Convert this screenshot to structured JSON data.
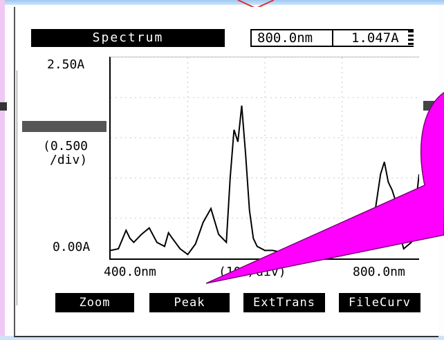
{
  "display": {
    "title": "Spectrum",
    "wavelength_readout": "800.0nm",
    "absorbance_readout": "1.047A"
  },
  "y_axis": {
    "max_label": "2.50A",
    "scale_label_line1": "(0.500",
    "scale_label_line2": "/div)",
    "min_label": "0.00A"
  },
  "x_axis": {
    "start_label": "400.0nm",
    "scale_label": "(100/div)",
    "end_label": "800.0nm"
  },
  "softkeys": {
    "zoom": "Zoom",
    "peak": "Peak",
    "ext_trans": "ExtTrans",
    "file_curv": "FileCurv"
  },
  "chart_data": {
    "type": "line",
    "xlim": [
      400,
      800
    ],
    "ylim": [
      0,
      2.5
    ],
    "x": [
      400,
      410,
      420,
      425,
      430,
      440,
      450,
      460,
      470,
      475,
      480,
      490,
      500,
      510,
      520,
      530,
      540,
      550,
      555,
      560,
      565,
      570,
      575,
      580,
      585,
      590,
      600,
      610,
      620,
      640,
      660,
      680,
      700,
      710,
      720,
      730,
      740,
      750,
      755,
      760,
      765,
      770,
      775,
      780,
      790,
      800
    ],
    "y": [
      0.1,
      0.12,
      0.35,
      0.25,
      0.2,
      0.3,
      0.38,
      0.2,
      0.15,
      0.32,
      0.25,
      0.12,
      0.05,
      0.18,
      0.45,
      0.62,
      0.3,
      0.2,
      1.0,
      1.6,
      1.45,
      1.9,
      1.3,
      0.6,
      0.25,
      0.15,
      0.1,
      0.1,
      0.08,
      0.05,
      0.05,
      0.05,
      0.06,
      0.08,
      0.12,
      0.25,
      0.4,
      1.05,
      1.2,
      0.95,
      0.85,
      0.7,
      0.3,
      0.12,
      0.2,
      1.047
    ]
  },
  "colors": {
    "screen_bg": "#ffffff",
    "ink": "#000000",
    "callout_fill": "#ff00ff",
    "chrome_blue": "#9ec8f0",
    "chrome_pink": "#f0c8f4"
  }
}
